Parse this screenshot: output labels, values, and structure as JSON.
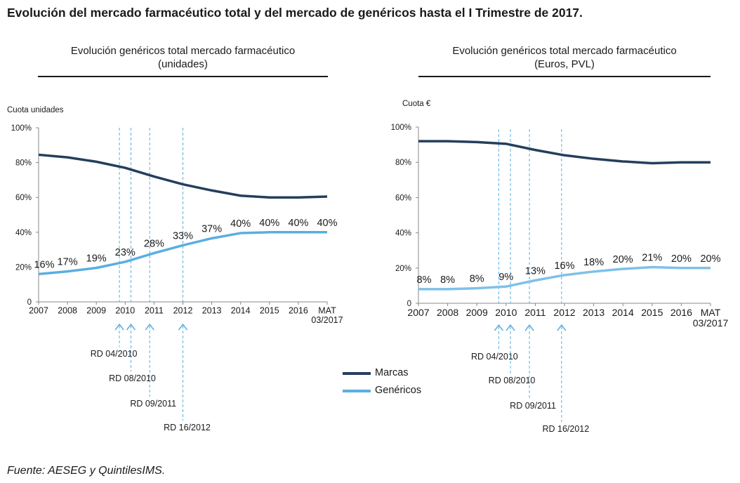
{
  "title": "Evolución del mercado farmacéutico total y del mercado de genéricos hasta el I Trimestre de 2017.",
  "footer": "Fuente: AESEG y QuintilesIMS.",
  "legend": {
    "marcas": "Marcas",
    "genericos": "Genéricos"
  },
  "colors": {
    "marcas": "#243f5c",
    "genericos": "#5aaee0",
    "genericos_right": "#7ec1ea",
    "axis": "#888888",
    "ref_lines": "#5aaee0"
  },
  "chart_data": [
    {
      "type": "line",
      "title": "Evolución genéricos total mercado farmacéutico",
      "subtitle": "(unidades)",
      "ylabel": "Cuota unidades",
      "ylim": [
        0,
        100
      ],
      "yticks": [
        "0",
        "20%",
        "40%",
        "60%",
        "80%",
        "100%"
      ],
      "categories": [
        "2007",
        "2008",
        "2009",
        "2010",
        "2011",
        "2012",
        "2013",
        "2014",
        "2015",
        "2016",
        "MAT 03/2017"
      ],
      "series": [
        {
          "name": "Marcas",
          "values": [
            84.5,
            83,
            80.5,
            77,
            72,
            67.5,
            64,
            61,
            60,
            60,
            60.5
          ]
        },
        {
          "name": "Genéricos",
          "values": [
            16,
            17.5,
            19.5,
            23,
            28,
            32.5,
            36.5,
            39.5,
            40,
            40,
            40
          ],
          "labels": [
            "16%",
            "17%",
            "19%",
            "23%",
            "28%",
            "33%",
            "37%",
            "40%",
            "40%",
            "40%",
            "40%"
          ]
        }
      ],
      "reference_lines": [
        {
          "x": 2009.8,
          "label": "RD 04/2010"
        },
        {
          "x": 2010.2,
          "label": "RD 08/2010"
        },
        {
          "x": 2010.85,
          "label": "RD 09/2011"
        },
        {
          "x": 2012.0,
          "label": "RD 16/2012"
        }
      ]
    },
    {
      "type": "line",
      "title": "Evolución genéricos total mercado farmacéutico",
      "subtitle": "(Euros, PVL)",
      "ylabel": "Cuota €",
      "ylim": [
        0,
        100
      ],
      "yticks": [
        "0",
        "20%",
        "40%",
        "60%",
        "80%",
        "100%"
      ],
      "categories": [
        "2007",
        "2008",
        "2009",
        "2010",
        "2011",
        "2012",
        "2013",
        "2014",
        "2015",
        "2016",
        "MAT 03/2017"
      ],
      "series": [
        {
          "name": "Marcas",
          "values": [
            92,
            92,
            91.5,
            90.5,
            87,
            84,
            82,
            80.5,
            79.5,
            80,
            80
          ]
        },
        {
          "name": "Genéricos",
          "values": [
            8,
            8,
            8.5,
            9.5,
            13,
            16,
            18,
            19.5,
            20.5,
            20,
            20
          ],
          "labels": [
            "8%",
            "8%",
            "8%",
            "9%",
            "13%",
            "16%",
            "18%",
            "20%",
            "21%",
            "20%",
            "20%"
          ]
        }
      ],
      "reference_lines": [
        {
          "x": 2009.75,
          "label": "RD 04/2010"
        },
        {
          "x": 2010.15,
          "label": "RD 08/2010"
        },
        {
          "x": 2010.8,
          "label": "RD 09/2011"
        },
        {
          "x": 2011.9,
          "label": "RD 16/2012"
        }
      ]
    }
  ]
}
